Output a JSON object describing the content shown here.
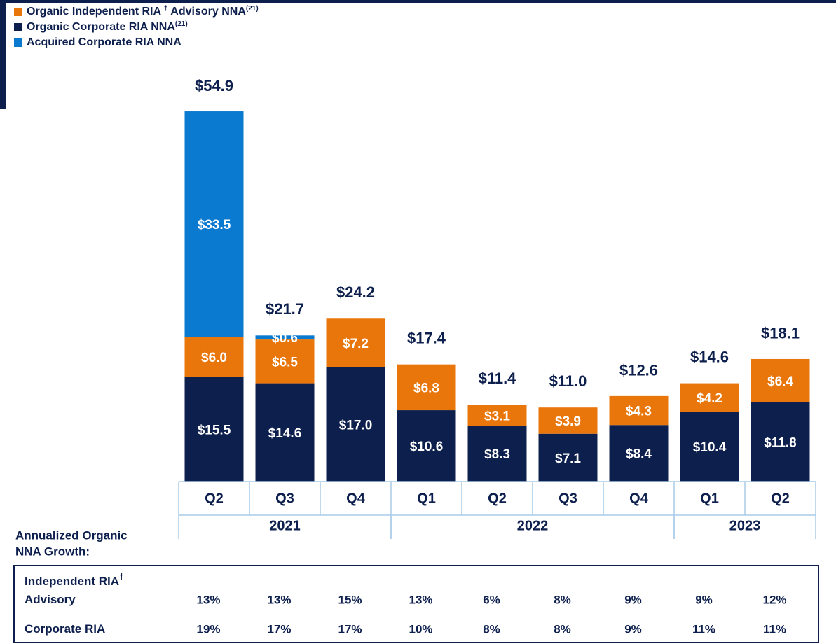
{
  "chart_data": {
    "type": "stacked_bar",
    "categories": [
      "Q2",
      "Q3",
      "Q4",
      "Q1",
      "Q2",
      "Q3",
      "Q4",
      "Q1",
      "Q2"
    ],
    "year_groups": [
      {
        "label": "2021",
        "count": 3
      },
      {
        "label": "2022",
        "count": 4
      },
      {
        "label": "2023",
        "count": 2
      }
    ],
    "series": [
      {
        "name": "Organic Corporate RIA NNA",
        "sup": "(21)",
        "color": "#0d1f4d",
        "values": [
          15.5,
          14.6,
          17.0,
          10.6,
          8.3,
          7.1,
          8.4,
          10.4,
          11.8
        ],
        "value_labels": [
          "$15.5",
          "$14.6",
          "$17.0",
          "$10.6",
          "$8.3",
          "$7.1",
          "$8.4",
          "$10.4",
          "$11.8"
        ]
      },
      {
        "name": "Organic Independent RIA ",
        "sup": "†",
        "name_rest": " Advisory NNA",
        "sup2": "(21)",
        "color": "#e8760a",
        "values": [
          6.0,
          6.5,
          7.2,
          6.8,
          3.1,
          3.9,
          4.3,
          4.2,
          6.4
        ],
        "value_labels": [
          "$6.0",
          "$6.5",
          "$7.2",
          "$6.8",
          "$3.1",
          "$3.9",
          "$4.3",
          "$4.2",
          "$6.4"
        ]
      },
      {
        "name": "Acquired Corporate RIA NNA",
        "color": "#0a7ad1",
        "values": [
          33.5,
          0.6,
          null,
          null,
          null,
          null,
          null,
          null,
          null
        ],
        "value_labels": [
          "$33.5",
          "$0.6",
          null,
          null,
          null,
          null,
          null,
          null,
          null
        ]
      }
    ],
    "totals": [
      54.9,
      21.7,
      24.2,
      17.4,
      11.4,
      11.0,
      12.6,
      14.6,
      18.1
    ],
    "total_labels": [
      "$54.9",
      "$21.7",
      "$24.2",
      "$17.4",
      "$11.4",
      "$11.0",
      "$12.6",
      "$14.6",
      "$18.1"
    ]
  },
  "table": {
    "caption_lines": [
      "Annualized Organic",
      "NNA Growth:"
    ],
    "rows": [
      {
        "label_lines": [
          "Independent RIA",
          "Advisory"
        ],
        "sup": "†",
        "values": [
          "13%",
          "13%",
          "15%",
          "13%",
          "6%",
          "8%",
          "9%",
          "9%",
          "12%"
        ]
      },
      {
        "label_lines": [
          "Corporate RIA"
        ],
        "values": [
          "19%",
          "17%",
          "17%",
          "10%",
          "8%",
          "8%",
          "9%",
          "11%",
          "11%"
        ]
      }
    ]
  }
}
